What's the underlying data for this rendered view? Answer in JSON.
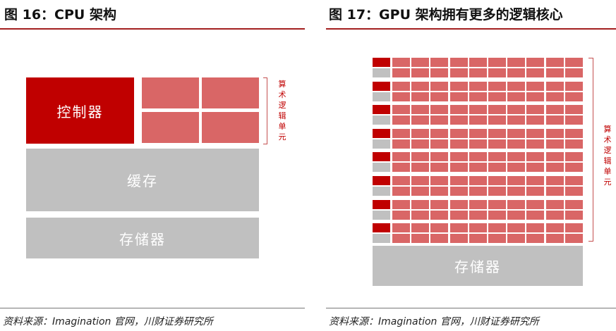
{
  "cpu": {
    "title": "图 16：CPU 架构",
    "control_label": "控制器",
    "cache_label": "缓存",
    "storage_label": "存储器",
    "alu_label": "算术逻辑单元",
    "source": "资料来源：Imagination 官网，川财证券研究所"
  },
  "gpu": {
    "title": "图 17：GPU 架构拥有更多的逻辑核心",
    "storage_label": "存储器",
    "alu_label": "算术逻辑单元",
    "rows": 8,
    "alu_columns": 10,
    "source": "资料来源：Imagination 官网，川财证券研究所"
  },
  "colors": {
    "control": "#c00000",
    "alu": "#d96666",
    "cache": "#c0c0c0",
    "rule": "#a31f1f"
  }
}
